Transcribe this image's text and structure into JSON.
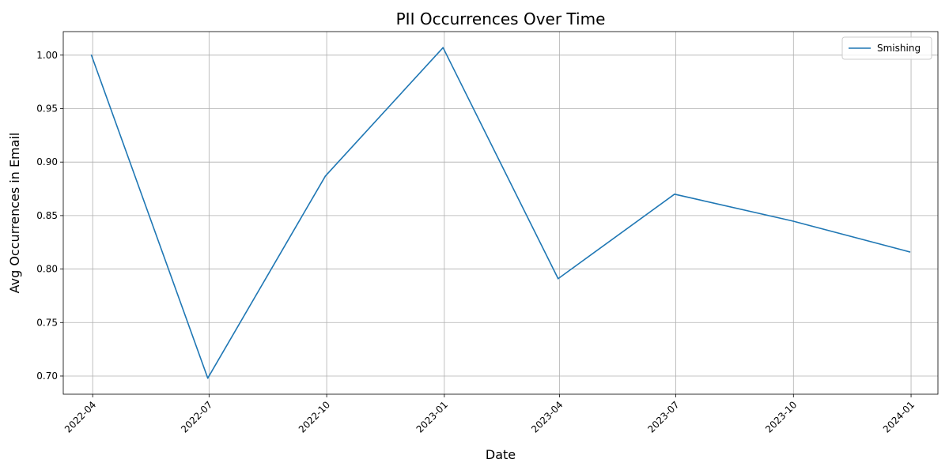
{
  "chart_data": {
    "type": "line",
    "title": "PII Occurrences Over Time",
    "xlabel": "Date",
    "ylabel": "Avg Occurrences in Email",
    "x": [
      "2022-03-31",
      "2022-06-30",
      "2022-09-30",
      "2022-12-31",
      "2023-03-31",
      "2023-06-30",
      "2023-09-30",
      "2023-12-31"
    ],
    "series": [
      {
        "name": "Smishing",
        "color": "#1f77b4",
        "values": [
          1.0,
          0.698,
          0.887,
          1.007,
          0.791,
          0.87,
          0.845,
          0.816
        ]
      }
    ],
    "xlim": [
      "2022-03-09",
      "2024-01-22"
    ],
    "ylim": [
      0.683,
      1.022
    ],
    "x_ticks": [
      "2022-04",
      "2022-07",
      "2022-10",
      "2023-01",
      "2023-04",
      "2023-07",
      "2023-10",
      "2024-01"
    ],
    "y_ticks": [
      "0.70",
      "0.75",
      "0.80",
      "0.85",
      "0.90",
      "0.95",
      "1.00"
    ],
    "grid": true,
    "legend_position": "top-right"
  }
}
